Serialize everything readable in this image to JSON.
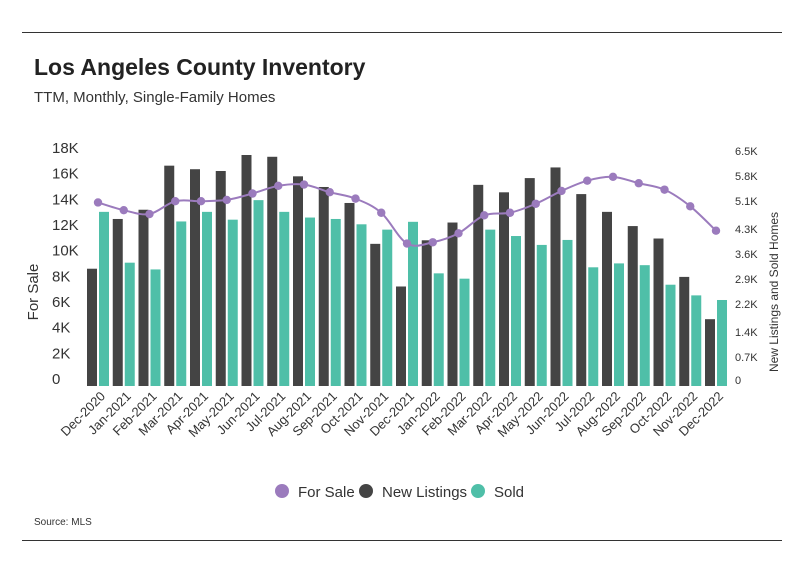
{
  "title": "Los Angeles County Inventory",
  "subtitle": "TTM, Monthly, Single-Family Homes",
  "source": "Source: MLS",
  "chart_data": {
    "type": "bar",
    "categories": [
      "Dec-2020",
      "Jan-2021",
      "Feb-2021",
      "Mar-2021",
      "Apr-2021",
      "May-2021",
      "Jun-2021",
      "Jul-2021",
      "Aug-2021",
      "Sep-2021",
      "Oct-2021",
      "Nov-2021",
      "Dec-2021",
      "Jan-2022",
      "Feb-2022",
      "Mar-2022",
      "Apr-2022",
      "May-2022",
      "Jun-2022",
      "Jul-2022",
      "Aug-2022",
      "Sep-2022",
      "Oct-2022",
      "Nov-2022",
      "Dec-2022"
    ],
    "left_axis": {
      "label": "For Sale",
      "ylim": [
        0,
        18000
      ],
      "ticks": [
        0,
        2000,
        4000,
        6000,
        8000,
        10000,
        12000,
        14000,
        16000,
        18000
      ],
      "tick_labels": [
        "0",
        "2K",
        "4K",
        "6K",
        "8K",
        "10K",
        "12K",
        "14K",
        "16K",
        "18K"
      ]
    },
    "right_axis": {
      "label": "New Listings and Sold Homes",
      "ylim": [
        0,
        6500
      ],
      "ticks": [
        0,
        700,
        1400,
        2200,
        2900,
        3600,
        4300,
        5100,
        5800,
        6500
      ],
      "tick_labels": [
        "0",
        "0.7K",
        "1.4K",
        "2.2K",
        "2.9K",
        "3.6K",
        "4.3K",
        "5.1K",
        "5.8K",
        "6.5K"
      ]
    },
    "series": [
      {
        "name": "For Sale",
        "kind": "line",
        "axis": "left",
        "color": "#9b7bbd",
        "values": [
          14300,
          13700,
          13400,
          14400,
          14400,
          14500,
          15000,
          15600,
          15700,
          15100,
          14600,
          13500,
          11100,
          11200,
          11900,
          13300,
          13500,
          14200,
          15200,
          16000,
          16300,
          15800,
          15300,
          14000,
          12100
        ]
      },
      {
        "name": "New Listings",
        "kind": "bar",
        "axis": "right",
        "color": "#444444",
        "values": [
          3300,
          4700,
          4960,
          6200,
          6100,
          6050,
          6500,
          6450,
          5900,
          5600,
          5150,
          4000,
          2800,
          4100,
          4600,
          5660,
          5450,
          5850,
          6150,
          5400,
          4900,
          4500,
          4150,
          3070,
          1880
        ]
      },
      {
        "name": "Sold",
        "kind": "bar",
        "axis": "right",
        "color": "#4fbfa8",
        "values": [
          4900,
          3470,
          3280,
          4630,
          4900,
          4680,
          5230,
          4900,
          4740,
          4700,
          4550,
          4400,
          4620,
          3170,
          3020,
          4400,
          4220,
          3970,
          4110,
          3340,
          3450,
          3400,
          2850,
          2550,
          2420
        ]
      }
    ],
    "legend": {
      "position": "bottom",
      "items": [
        {
          "label": "For Sale",
          "shape": "circle",
          "color": "#9b7bbd"
        },
        {
          "label": "New Listings",
          "shape": "circle",
          "color": "#444444"
        },
        {
          "label": "Sold",
          "shape": "circle",
          "color": "#4fbfa8"
        }
      ]
    },
    "grid": false
  }
}
